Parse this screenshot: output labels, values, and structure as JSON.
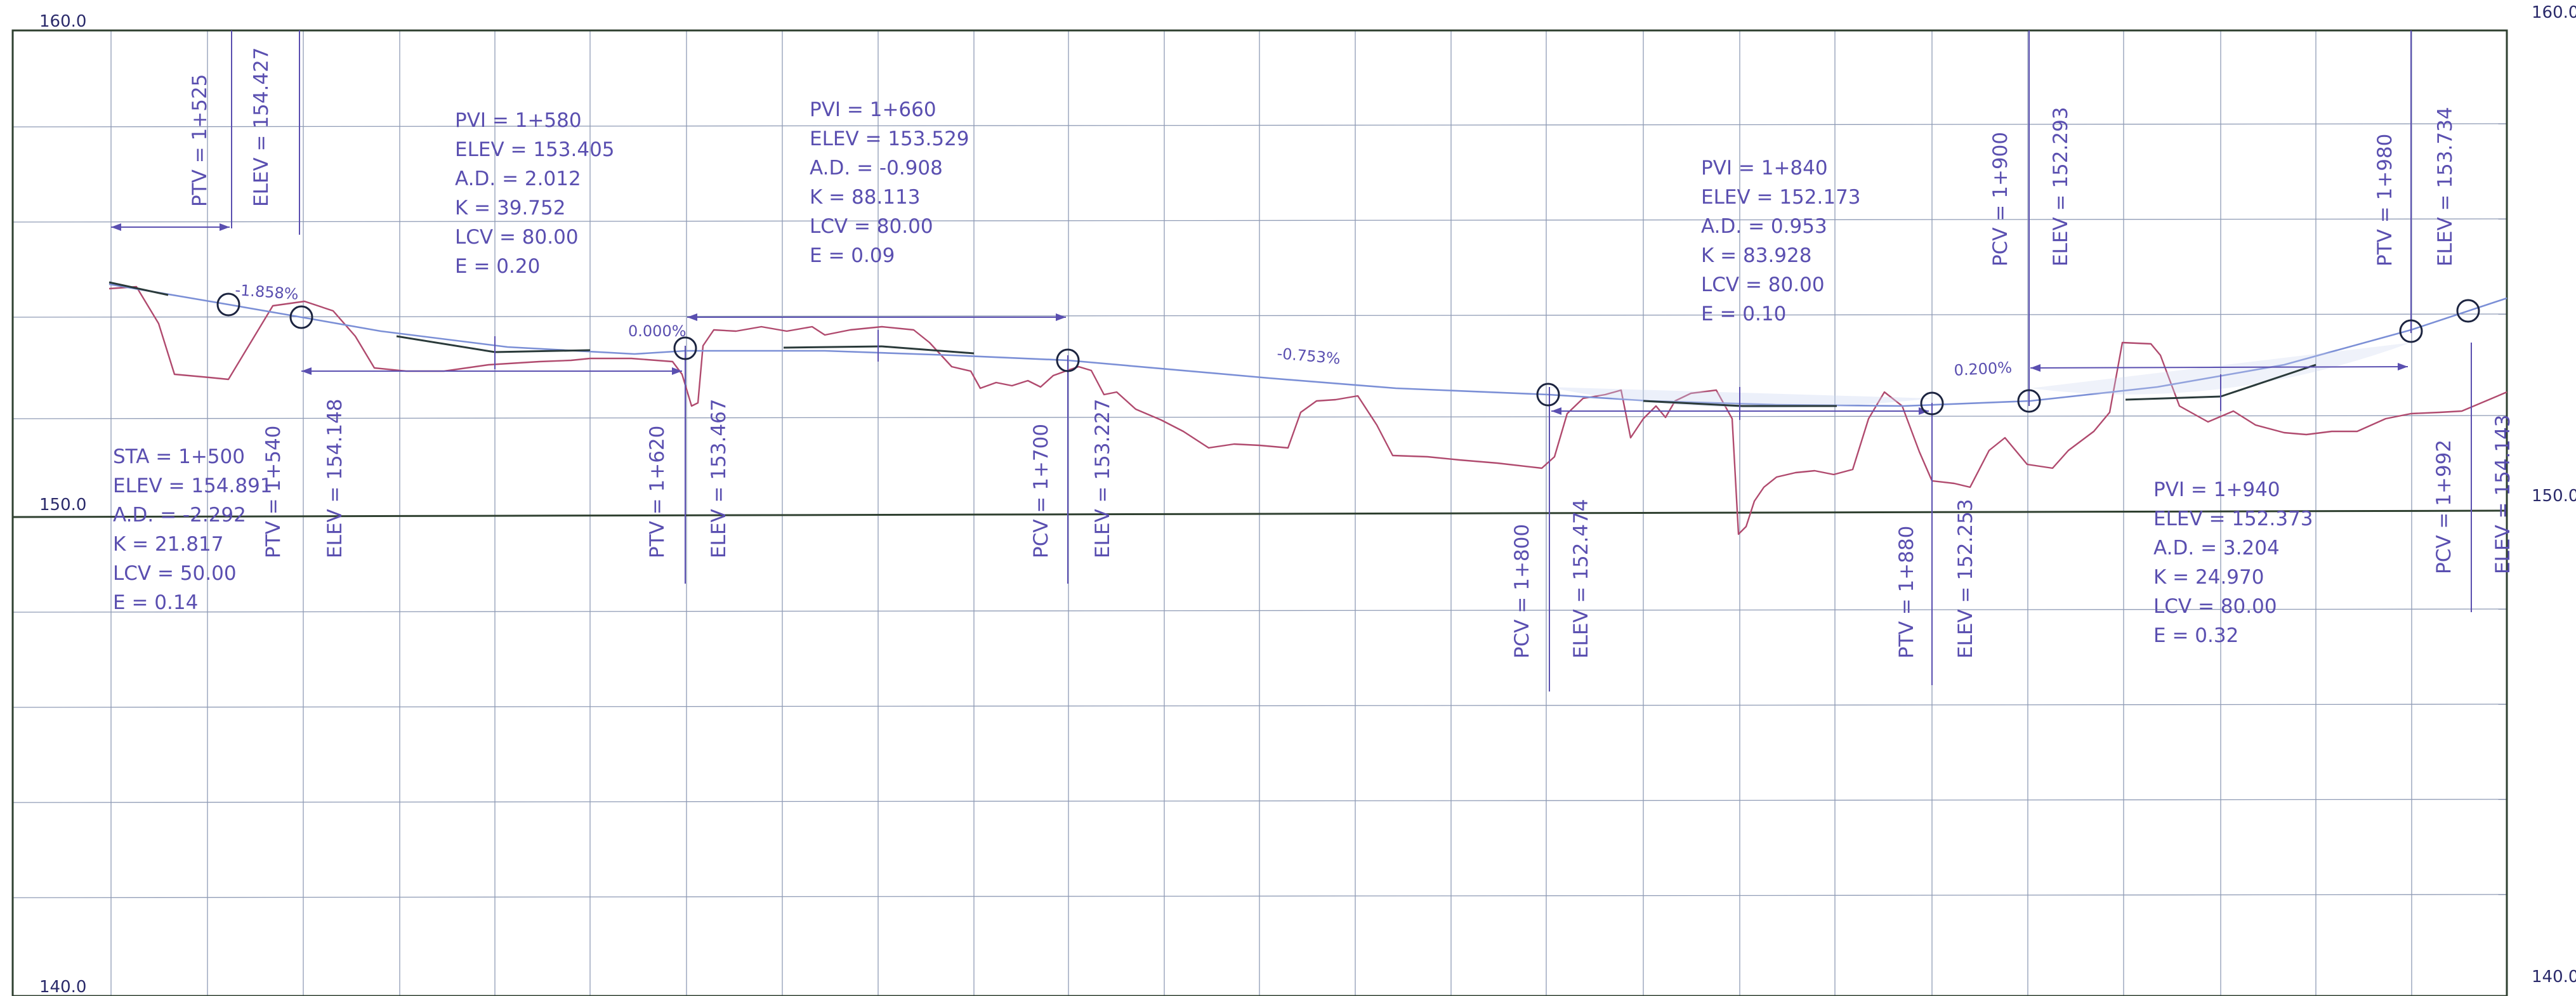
{
  "elevation_labels": {
    "top": "160.0",
    "middle": "150.0",
    "bottom": "140.0"
  },
  "station_labels": [
    "PTV = 1+525",
    "ELEV = 154.427",
    "PTV = 1+540",
    "ELEV = 154.148",
    "PTV = 1+620",
    "ELEV = 153.467",
    "PCV = 1+700",
    "ELEV = 153.227",
    "PCV = 1+800",
    "ELEV = 152.474",
    "PTV = 1+880",
    "ELEV = 152.253",
    "PCV = 1+900",
    "ELEV = 152.293",
    "PTV = 1+980",
    "ELEV = 153.734",
    "PCV = 1+992",
    "ELEV = 154.143"
  ],
  "curve_blocks": [
    [
      "STA = 1+500",
      "ELEV = 154.891",
      "A.D. = -2.292",
      "K = 21.817",
      "LCV = 50.00",
      "E = 0.14"
    ],
    [
      "PVI = 1+580",
      "ELEV = 153.405",
      "A.D. = 2.012",
      "K = 39.752",
      "LCV = 80.00",
      "E = 0.20"
    ],
    [
      "PVI = 1+660",
      "ELEV = 153.529",
      "A.D. = -0.908",
      "K = 88.113",
      "LCV = 80.00",
      "E = 0.09"
    ],
    [
      "PVI = 1+840",
      "ELEV = 152.173",
      "A.D. = 0.953",
      "K = 83.928",
      "LCV = 80.00",
      "E = 0.10"
    ],
    [
      "PVI = 1+940",
      "ELEV = 152.373",
      "A.D. = 3.204",
      "K = 24.970",
      "LCV = 80.00",
      "E = 0.32"
    ]
  ],
  "grade_labels": [
    "-1.858%",
    "0.000%",
    "-0.753%",
    "0.200%"
  ],
  "colors": {
    "grid": "#8f9bb5",
    "border": "#2f4030",
    "ground_line": "#b04a6e",
    "design_profile": "#7b8fd6",
    "annotation": "#5a4fb0",
    "marker": "#1c2440",
    "dark_segment": "#2a3a3a"
  }
}
